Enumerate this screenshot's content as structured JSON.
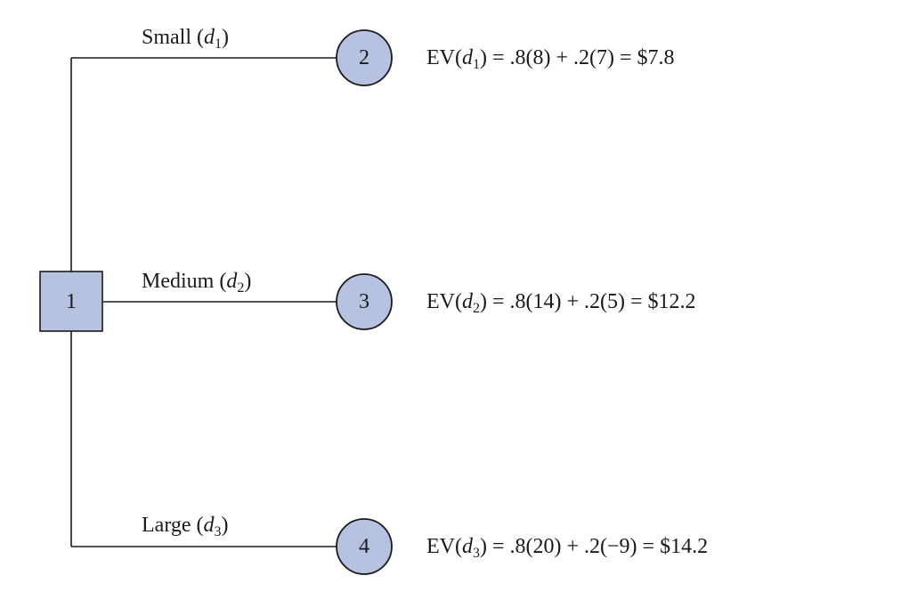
{
  "decision_node": {
    "label": "1"
  },
  "branches": [
    {
      "name": "Small",
      "var": "d",
      "sub": "1",
      "node": "2",
      "ev": {
        "prefix": "EV(",
        "var": "d",
        "sub": "1",
        "rest": ") = .8(8) + .2(7) = $7.8"
      }
    },
    {
      "name": "Medium",
      "var": "d",
      "sub": "2",
      "node": "3",
      "ev": {
        "prefix": "EV(",
        "var": "d",
        "sub": "2",
        "rest": ") = .8(14) + .2(5) = $12.2"
      }
    },
    {
      "name": "Large",
      "var": "d",
      "sub": "3",
      "node": "4",
      "ev": {
        "prefix": "EV(",
        "var": "d",
        "sub": "3",
        "rest": ") = .8(20) + .2(−9) = $14.2"
      }
    }
  ],
  "colors": {
    "node_fill": "#b7c2e0",
    "line": "#1a1a1a"
  }
}
